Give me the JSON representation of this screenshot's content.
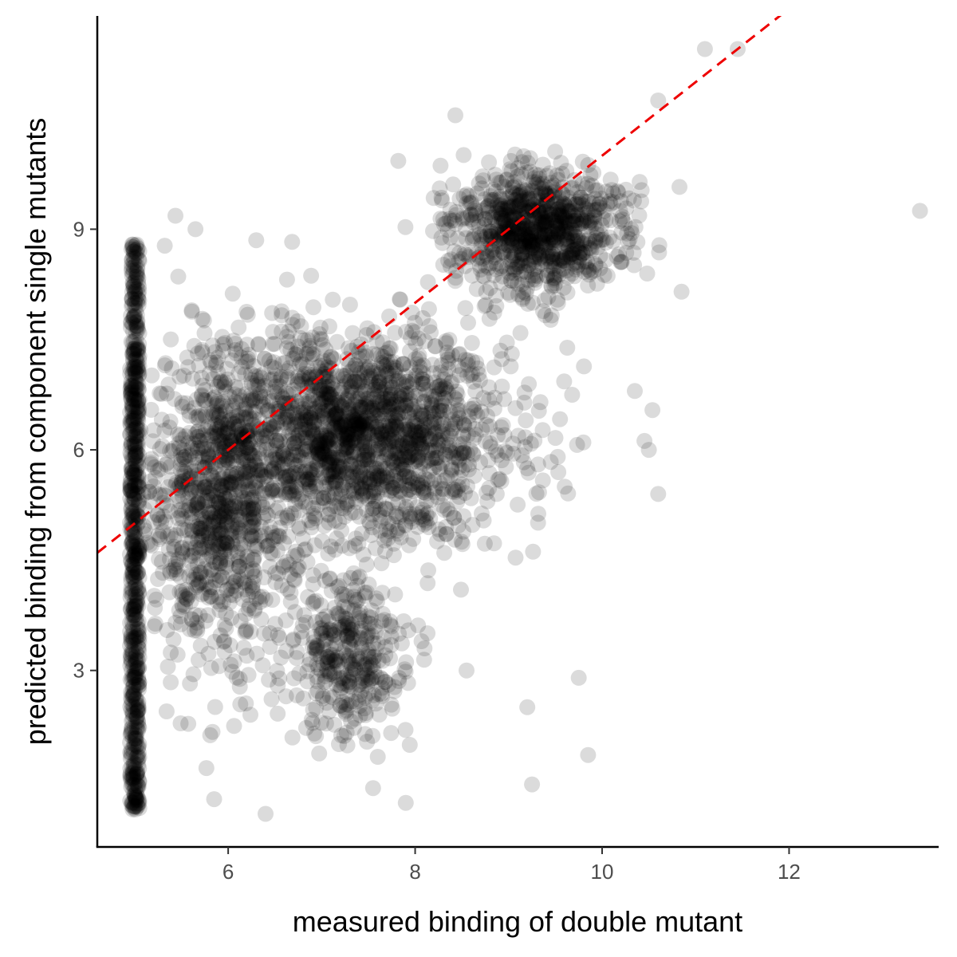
{
  "chart_data": {
    "type": "scatter",
    "title": "",
    "xlabel": "measured binding of double mutant",
    "ylabel": "predicted binding from component single mutants",
    "xlim": [
      4.6,
      13.6
    ],
    "ylim": [
      0.6,
      11.9
    ],
    "xticks": [
      6,
      8,
      10,
      12
    ],
    "yticks": [
      3,
      6,
      9
    ],
    "grid": false,
    "legend": "none",
    "point_color": "#000000",
    "point_alpha": 0.14,
    "reference_line": {
      "slope": 1,
      "intercept": 0,
      "color": "#ee0000",
      "style": "dashed"
    },
    "points_described_as": "dense cloud of ~100k points; dense vertical band at x=5 spanning y 1.1-8.8; main cloud along y=x from x=5 to x=10.8; sparse outliers listed below",
    "clusters": [
      {
        "x_range": [
          4.95,
          5.05
        ],
        "y_range": [
          1.1,
          8.8
        ],
        "count": 700
      },
      {
        "x_center": 7.4,
        "y_center": 6.2,
        "x_spread": 1.6,
        "y_spread": 1.4,
        "count": 1800
      },
      {
        "x_center": 5.9,
        "y_center": 5.2,
        "x_spread": 0.8,
        "y_spread": 2.2,
        "count": 900
      },
      {
        "x_center": 9.3,
        "y_center": 9.0,
        "x_spread": 0.9,
        "y_spread": 0.8,
        "count": 900
      },
      {
        "x_center": 7.3,
        "y_center": 3.2,
        "x_spread": 0.6,
        "y_spread": 1.1,
        "count": 350
      }
    ],
    "outliers": [
      {
        "x": 13.4,
        "y": 9.25
      },
      {
        "x": 8.43,
        "y": 10.55
      },
      {
        "x": 10.85,
        "y": 8.15
      },
      {
        "x": 9.85,
        "y": 1.85
      },
      {
        "x": 9.25,
        "y": 1.45
      },
      {
        "x": 10.6,
        "y": 5.4
      },
      {
        "x": 10.35,
        "y": 6.8
      },
      {
        "x": 6.4,
        "y": 1.05
      },
      {
        "x": 7.9,
        "y": 1.2
      },
      {
        "x": 11.1,
        "y": 11.45
      },
      {
        "x": 11.45,
        "y": 11.45
      },
      {
        "x": 10.6,
        "y": 10.75
      },
      {
        "x": 10.5,
        "y": 6.0
      },
      {
        "x": 9.6,
        "y": 5.5
      },
      {
        "x": 9.75,
        "y": 2.9
      },
      {
        "x": 8.55,
        "y": 3.0
      },
      {
        "x": 9.2,
        "y": 2.5
      },
      {
        "x": 8.1,
        "y": 3.3
      },
      {
        "x": 7.55,
        "y": 1.4
      },
      {
        "x": 5.85,
        "y": 1.25
      },
      {
        "x": 5.65,
        "y": 9.0
      },
      {
        "x": 6.3,
        "y": 8.85
      }
    ]
  }
}
